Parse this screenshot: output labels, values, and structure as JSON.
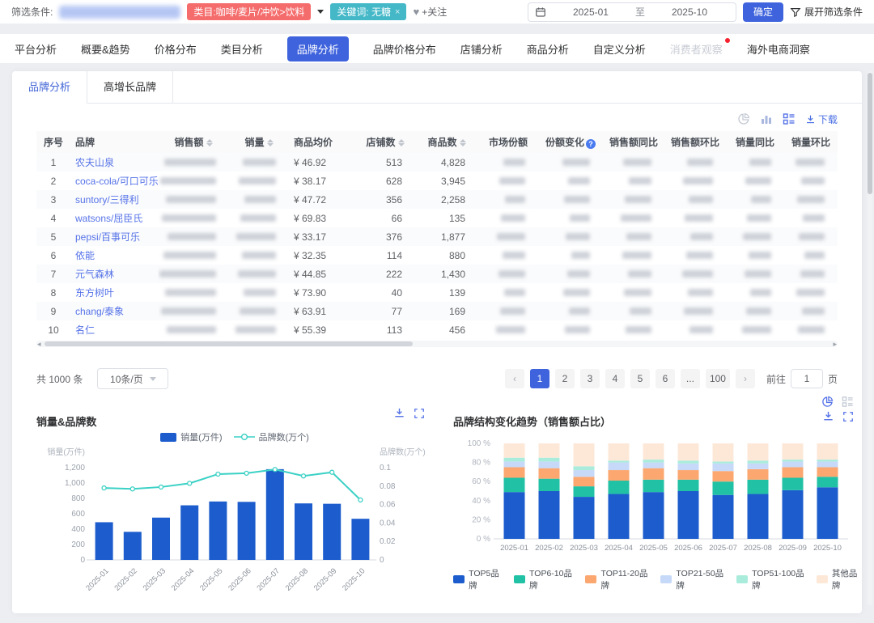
{
  "filter_bar": {
    "label": "筛选条件:",
    "category_tag": "类目:咖啡/麦片/冲饮>饮料",
    "keyword_tag": "关键词: 无糖",
    "keyword_close": "×",
    "follow": "+关注",
    "date_start": "2025-01",
    "date_sep": "至",
    "date_end": "2025-10",
    "confirm_button": "确定",
    "expand_filters": "展开筛选条件"
  },
  "nav_tabs": [
    {
      "label": "平台分析"
    },
    {
      "label": "概要&趋势"
    },
    {
      "label": "价格分布"
    },
    {
      "label": "类目分析"
    },
    {
      "label": "品牌分析",
      "active": true
    },
    {
      "label": "品牌价格分布"
    },
    {
      "label": "店铺分析"
    },
    {
      "label": "商品分析"
    },
    {
      "label": "自定义分析"
    },
    {
      "label": "消费者观察",
      "disabled": true,
      "badge": true
    },
    {
      "label": "海外电商洞察"
    }
  ],
  "sub_tabs": [
    {
      "label": "品牌分析",
      "active": true
    },
    {
      "label": "高增长品牌"
    }
  ],
  "table": {
    "tools": {
      "download": "下载"
    },
    "columns": [
      {
        "label": "序号",
        "align": "center"
      },
      {
        "label": "品牌",
        "align": "left"
      },
      {
        "label": "销售额",
        "sortable": true,
        "blurred": true,
        "align": "right"
      },
      {
        "label": "销量",
        "sortable": true,
        "blurred": true,
        "align": "right"
      },
      {
        "label": "商品均价",
        "align": "left",
        "key": "avg_price"
      },
      {
        "label": "店铺数",
        "sortable": true,
        "align": "right",
        "key": "shops"
      },
      {
        "label": "商品数",
        "sortable": true,
        "align": "right",
        "key": "products"
      },
      {
        "label": "市场份额",
        "blurred": true,
        "align": "right"
      },
      {
        "label": "份额变化",
        "info": true,
        "blurred": true,
        "align": "right"
      },
      {
        "label": "销售额同比",
        "blurred": true,
        "align": "right"
      },
      {
        "label": "销售额环比",
        "blurred": true,
        "align": "right"
      },
      {
        "label": "销量同比",
        "blurred": true,
        "align": "right"
      },
      {
        "label": "销量环比",
        "blurred": true,
        "align": "right"
      }
    ],
    "rows": [
      {
        "index": "1",
        "brand": "农夫山泉",
        "avg_price": "¥ 46.92",
        "shops": "513",
        "products": "4,828"
      },
      {
        "index": "2",
        "brand": "coca-cola/可口可乐",
        "avg_price": "¥ 38.17",
        "shops": "628",
        "products": "3,945"
      },
      {
        "index": "3",
        "brand": "suntory/三得利",
        "avg_price": "¥ 47.72",
        "shops": "356",
        "products": "2,258"
      },
      {
        "index": "4",
        "brand": "watsons/屈臣氏",
        "avg_price": "¥ 69.83",
        "shops": "66",
        "products": "135"
      },
      {
        "index": "5",
        "brand": "pepsi/百事可乐",
        "avg_price": "¥ 33.17",
        "shops": "376",
        "products": "1,877"
      },
      {
        "index": "6",
        "brand": "依能",
        "avg_price": "¥ 32.35",
        "shops": "114",
        "products": "880"
      },
      {
        "index": "7",
        "brand": "元气森林",
        "avg_price": "¥ 44.85",
        "shops": "222",
        "products": "1,430"
      },
      {
        "index": "8",
        "brand": "东方树叶",
        "avg_price": "¥ 73.90",
        "shops": "40",
        "products": "139"
      },
      {
        "index": "9",
        "brand": "chang/泰象",
        "avg_price": "¥ 63.91",
        "shops": "77",
        "products": "169"
      },
      {
        "index": "10",
        "brand": "名仁",
        "avg_price": "¥ 55.39",
        "shops": "113",
        "products": "456"
      }
    ]
  },
  "pagination": {
    "total": "共 1000 条",
    "page_size": "10条/页",
    "prev": "‹",
    "next": "›",
    "pages": [
      "1",
      "2",
      "3",
      "4",
      "5",
      "6",
      "...",
      "100"
    ],
    "active_page": "1",
    "goto_label": "前往",
    "goto_value": "1",
    "goto_unit": "页"
  },
  "colors": {
    "accent": "#3e63dd",
    "link": "#5673e8",
    "tag_red": "#f56c6c",
    "tag_teal": "#45b8c8",
    "bar_blue": "#1c5ccc",
    "line_teal": "#3bd1c5"
  },
  "chart_data": [
    {
      "type": "bar",
      "title": "销量&品牌数",
      "categories": [
        "2025-01",
        "2025-02",
        "2025-03",
        "2025-04",
        "2025-05",
        "2025-06",
        "2025-07",
        "2025-08",
        "2025-09",
        "2025-10"
      ],
      "series": [
        {
          "name": "销量(万件)",
          "type": "bar",
          "axis": "left",
          "color": "#1c5ccc",
          "values": [
            490,
            365,
            550,
            710,
            760,
            755,
            1180,
            735,
            730,
            535
          ]
        },
        {
          "name": "品牌数(万个)",
          "type": "line",
          "axis": "right",
          "color": "#3bd1c5",
          "values": [
            0.078,
            0.077,
            0.079,
            0.083,
            0.093,
            0.094,
            0.098,
            0.091,
            0.095,
            0.065
          ]
        }
      ],
      "left_axis": {
        "label": "销量(万件)",
        "max": 1200,
        "ticks": [
          "0",
          "200",
          "400",
          "600",
          "800",
          "1,000",
          "1,200"
        ]
      },
      "right_axis": {
        "label": "品牌数(万个)",
        "max": 0.1,
        "ticks": [
          "0",
          "0.02",
          "0.04",
          "0.06",
          "0.08",
          "0.1"
        ]
      },
      "legend_position": "top",
      "grid": false
    },
    {
      "type": "bar",
      "subtype": "stacked-percent",
      "title": "品牌结构变化趋势（销售额占比）",
      "categories": [
        "2025-01",
        "2025-02",
        "2025-03",
        "2025-04",
        "2025-05",
        "2025-06",
        "2025-07",
        "2025-08",
        "2025-09",
        "2025-10"
      ],
      "series": [
        {
          "name": "TOP5品牌",
          "color": "#1c5ccc",
          "values": [
            49,
            50,
            44,
            47,
            49,
            50,
            46,
            47,
            51,
            54
          ]
        },
        {
          "name": "TOP6-10品牌",
          "color": "#21c1a5",
          "values": [
            15,
            13,
            11,
            14,
            13,
            12,
            14,
            15,
            13,
            11
          ]
        },
        {
          "name": "TOP11-20品牌",
          "color": "#fba76f",
          "values": [
            11,
            11,
            10,
            11,
            12,
            10,
            11,
            11,
            11,
            10
          ]
        },
        {
          "name": "TOP21-50品牌",
          "color": "#c7d9f8",
          "values": [
            6,
            7,
            7,
            8,
            6,
            7,
            8,
            6,
            6,
            6
          ]
        },
        {
          "name": "TOP51-100品牌",
          "color": "#a9ecdc",
          "values": [
            4,
            4,
            4,
            2,
            3,
            3,
            2,
            3,
            2,
            2
          ]
        },
        {
          "name": "其他品牌",
          "color": "#fde8d8",
          "values": [
            15,
            15,
            24,
            18,
            17,
            18,
            19,
            18,
            17,
            17
          ]
        }
      ],
      "y_axis": {
        "max": 100,
        "ticks": [
          "0 %",
          "20 %",
          "40 %",
          "60 %",
          "80 %",
          "100 %"
        ]
      },
      "legend_position": "bottom",
      "grid": false
    }
  ]
}
